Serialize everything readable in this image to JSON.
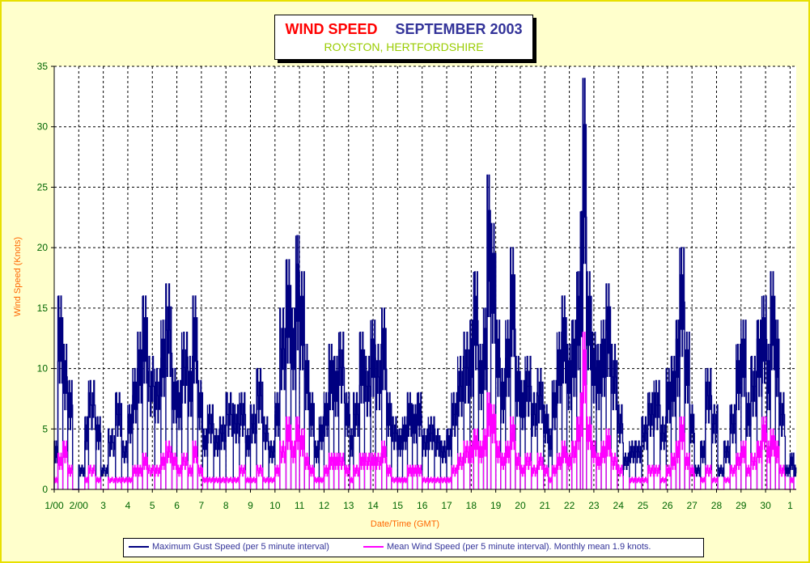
{
  "chart_data": {
    "type": "line",
    "title": {
      "main": "WIND SPEED",
      "month": "SEPTEMBER 2003",
      "subtitle": "ROYSTON, HERTFORDSHIRE"
    },
    "xlabel": "Date/Time (GMT)",
    "ylabel": "Wind Speed (Knots)",
    "ylim": [
      0,
      35
    ],
    "yticks": [
      0,
      5,
      10,
      15,
      20,
      25,
      30,
      35
    ],
    "xlim": [
      0,
      30.25
    ],
    "xtick_labels": [
      "1/00",
      "2/00",
      "3",
      "4",
      "5",
      "6",
      "7",
      "8",
      "9",
      "10",
      "11",
      "12",
      "13",
      "14",
      "15",
      "16",
      "17",
      "18",
      "19",
      "20",
      "21",
      "22",
      "23",
      "24",
      "25",
      "26",
      "27",
      "28",
      "29",
      "30",
      "1"
    ],
    "grid": true,
    "legend_position": "bottom",
    "series": [
      {
        "name": "Maximum Gust Speed (per 5 minute interval)",
        "color": "#000080",
        "x_unit": "days since 1 Sep 00:00 GMT",
        "points": [
          [
            0.0,
            4
          ],
          [
            0.15,
            16
          ],
          [
            0.35,
            12
          ],
          [
            0.55,
            9
          ],
          [
            0.75,
            0
          ],
          [
            1.0,
            2
          ],
          [
            1.25,
            6
          ],
          [
            1.4,
            9
          ],
          [
            1.7,
            6
          ],
          [
            1.9,
            2
          ],
          [
            2.2,
            5
          ],
          [
            2.5,
            8
          ],
          [
            2.75,
            4
          ],
          [
            3.0,
            7
          ],
          [
            3.2,
            10
          ],
          [
            3.4,
            13
          ],
          [
            3.6,
            16
          ],
          [
            3.8,
            11
          ],
          [
            4.1,
            10
          ],
          [
            4.35,
            14
          ],
          [
            4.55,
            17
          ],
          [
            4.8,
            10
          ],
          [
            5.0,
            9
          ],
          [
            5.2,
            13
          ],
          [
            5.45,
            11
          ],
          [
            5.65,
            16
          ],
          [
            5.85,
            9
          ],
          [
            6.05,
            5
          ],
          [
            6.25,
            7
          ],
          [
            6.5,
            5
          ],
          [
            6.75,
            6
          ],
          [
            7.0,
            8
          ],
          [
            7.3,
            7
          ],
          [
            7.55,
            8
          ],
          [
            7.8,
            5
          ],
          [
            8.0,
            7
          ],
          [
            8.25,
            10
          ],
          [
            8.5,
            6
          ],
          [
            8.75,
            4
          ],
          [
            9.0,
            8
          ],
          [
            9.2,
            15
          ],
          [
            9.45,
            19
          ],
          [
            9.65,
            15
          ],
          [
            9.85,
            21
          ],
          [
            10.0,
            18
          ],
          [
            10.2,
            12
          ],
          [
            10.4,
            8
          ],
          [
            10.6,
            4
          ],
          [
            10.8,
            6
          ],
          [
            11.0,
            8
          ],
          [
            11.2,
            12
          ],
          [
            11.4,
            11
          ],
          [
            11.6,
            13
          ],
          [
            11.85,
            8
          ],
          [
            12.05,
            5
          ],
          [
            12.2,
            8
          ],
          [
            12.45,
            13
          ],
          [
            12.65,
            11
          ],
          [
            12.9,
            14
          ],
          [
            13.1,
            12
          ],
          [
            13.35,
            15
          ],
          [
            13.55,
            8
          ],
          [
            13.75,
            6
          ],
          [
            14.0,
            5
          ],
          [
            14.2,
            6
          ],
          [
            14.4,
            8
          ],
          [
            14.6,
            7
          ],
          [
            14.8,
            8
          ],
          [
            15.0,
            5
          ],
          [
            15.25,
            6
          ],
          [
            15.5,
            5
          ],
          [
            15.75,
            4
          ],
          [
            16.0,
            5
          ],
          [
            16.2,
            8
          ],
          [
            16.45,
            11
          ],
          [
            16.7,
            13
          ],
          [
            16.95,
            14
          ],
          [
            17.1,
            18
          ],
          [
            17.3,
            12
          ],
          [
            17.5,
            15
          ],
          [
            17.65,
            26
          ],
          [
            17.8,
            22
          ],
          [
            18.0,
            14
          ],
          [
            18.2,
            10
          ],
          [
            18.4,
            14
          ],
          [
            18.6,
            20
          ],
          [
            18.8,
            11
          ],
          [
            19.0,
            9
          ],
          [
            19.2,
            11
          ],
          [
            19.45,
            8
          ],
          [
            19.7,
            10
          ],
          [
            19.95,
            7
          ],
          [
            20.15,
            5
          ],
          [
            20.3,
            9
          ],
          [
            20.5,
            13
          ],
          [
            20.7,
            16
          ],
          [
            20.9,
            12
          ],
          [
            21.1,
            14
          ],
          [
            21.3,
            18
          ],
          [
            21.45,
            23
          ],
          [
            21.55,
            34
          ],
          [
            21.7,
            18
          ],
          [
            21.9,
            13
          ],
          [
            22.1,
            12
          ],
          [
            22.3,
            14
          ],
          [
            22.5,
            17
          ],
          [
            22.7,
            12
          ],
          [
            22.95,
            7
          ],
          [
            23.2,
            3
          ],
          [
            23.45,
            4
          ],
          [
            23.7,
            4
          ],
          [
            23.95,
            6
          ],
          [
            24.2,
            8
          ],
          [
            24.45,
            9
          ],
          [
            24.7,
            6
          ],
          [
            24.95,
            10
          ],
          [
            25.15,
            11
          ],
          [
            25.35,
            14
          ],
          [
            25.5,
            20
          ],
          [
            25.7,
            13
          ],
          [
            25.9,
            7
          ],
          [
            26.1,
            2
          ],
          [
            26.35,
            4
          ],
          [
            26.55,
            10
          ],
          [
            26.8,
            7
          ],
          [
            27.05,
            2
          ],
          [
            27.3,
            4
          ],
          [
            27.55,
            7
          ],
          [
            27.8,
            12
          ],
          [
            28.0,
            14
          ],
          [
            28.2,
            8
          ],
          [
            28.4,
            11
          ],
          [
            28.65,
            14
          ],
          [
            28.85,
            16
          ],
          [
            29.05,
            12
          ],
          [
            29.2,
            18
          ],
          [
            29.4,
            14
          ],
          [
            29.55,
            8
          ],
          [
            29.8,
            2
          ],
          [
            30.0,
            3
          ],
          [
            30.15,
            2
          ]
        ]
      },
      {
        "name": "Mean Wind Speed (per 5 minute interval). Monthly mean 1.9 knots.",
        "color": "#ff00ff",
        "x_unit": "days since 1 Sep 00:00 GMT",
        "points": [
          [
            0.0,
            1
          ],
          [
            0.15,
            3
          ],
          [
            0.35,
            4
          ],
          [
            0.55,
            2
          ],
          [
            0.75,
            0
          ],
          [
            1.0,
            0
          ],
          [
            1.25,
            1
          ],
          [
            1.4,
            2
          ],
          [
            1.7,
            1
          ],
          [
            1.9,
            0
          ],
          [
            2.2,
            1
          ],
          [
            2.5,
            1
          ],
          [
            2.75,
            1
          ],
          [
            3.0,
            1
          ],
          [
            3.2,
            2
          ],
          [
            3.4,
            2
          ],
          [
            3.6,
            3
          ],
          [
            3.8,
            2
          ],
          [
            4.1,
            2
          ],
          [
            4.35,
            3
          ],
          [
            4.55,
            4
          ],
          [
            4.8,
            3
          ],
          [
            5.0,
            2
          ],
          [
            5.2,
            3
          ],
          [
            5.45,
            2
          ],
          [
            5.65,
            4
          ],
          [
            5.85,
            2
          ],
          [
            6.05,
            1
          ],
          [
            6.25,
            1
          ],
          [
            6.5,
            1
          ],
          [
            6.75,
            1
          ],
          [
            7.0,
            1
          ],
          [
            7.3,
            1
          ],
          [
            7.55,
            2
          ],
          [
            7.8,
            1
          ],
          [
            8.0,
            1
          ],
          [
            8.25,
            2
          ],
          [
            8.5,
            1
          ],
          [
            8.75,
            1
          ],
          [
            9.0,
            2
          ],
          [
            9.2,
            4
          ],
          [
            9.45,
            6
          ],
          [
            9.65,
            4
          ],
          [
            9.85,
            6
          ],
          [
            10.0,
            5
          ],
          [
            10.2,
            3
          ],
          [
            10.4,
            2
          ],
          [
            10.6,
            1
          ],
          [
            10.8,
            1
          ],
          [
            11.0,
            2
          ],
          [
            11.2,
            3
          ],
          [
            11.4,
            3
          ],
          [
            11.6,
            3
          ],
          [
            11.85,
            2
          ],
          [
            12.05,
            1
          ],
          [
            12.2,
            2
          ],
          [
            12.45,
            3
          ],
          [
            12.65,
            3
          ],
          [
            12.9,
            3
          ],
          [
            13.1,
            3
          ],
          [
            13.35,
            4
          ],
          [
            13.55,
            2
          ],
          [
            13.75,
            1
          ],
          [
            14.0,
            1
          ],
          [
            14.2,
            1
          ],
          [
            14.4,
            2
          ],
          [
            14.6,
            2
          ],
          [
            14.8,
            2
          ],
          [
            15.0,
            1
          ],
          [
            15.25,
            1
          ],
          [
            15.5,
            1
          ],
          [
            15.75,
            1
          ],
          [
            16.0,
            1
          ],
          [
            16.2,
            2
          ],
          [
            16.45,
            3
          ],
          [
            16.7,
            4
          ],
          [
            16.95,
            4
          ],
          [
            17.1,
            5
          ],
          [
            17.3,
            4
          ],
          [
            17.5,
            5
          ],
          [
            17.65,
            8
          ],
          [
            17.8,
            7
          ],
          [
            18.0,
            4
          ],
          [
            18.2,
            3
          ],
          [
            18.4,
            4
          ],
          [
            18.6,
            6
          ],
          [
            18.8,
            3
          ],
          [
            19.0,
            2
          ],
          [
            19.2,
            3
          ],
          [
            19.45,
            2
          ],
          [
            19.7,
            3
          ],
          [
            19.95,
            2
          ],
          [
            20.15,
            1
          ],
          [
            20.3,
            2
          ],
          [
            20.5,
            3
          ],
          [
            20.7,
            4
          ],
          [
            20.9,
            3
          ],
          [
            21.1,
            4
          ],
          [
            21.3,
            6
          ],
          [
            21.45,
            8
          ],
          [
            21.55,
            13
          ],
          [
            21.7,
            6
          ],
          [
            21.9,
            4
          ],
          [
            22.1,
            3
          ],
          [
            22.3,
            4
          ],
          [
            22.5,
            5
          ],
          [
            22.7,
            3
          ],
          [
            22.95,
            2
          ],
          [
            23.2,
            0
          ],
          [
            23.45,
            1
          ],
          [
            23.7,
            1
          ],
          [
            23.95,
            1
          ],
          [
            24.2,
            2
          ],
          [
            24.45,
            2
          ],
          [
            24.7,
            1
          ],
          [
            24.95,
            2
          ],
          [
            25.15,
            3
          ],
          [
            25.35,
            4
          ],
          [
            25.5,
            6
          ],
          [
            25.7,
            3
          ],
          [
            25.9,
            2
          ],
          [
            26.1,
            0
          ],
          [
            26.35,
            1
          ],
          [
            26.55,
            2
          ],
          [
            26.8,
            1
          ],
          [
            27.05,
            0
          ],
          [
            27.3,
            1
          ],
          [
            27.55,
            2
          ],
          [
            27.8,
            3
          ],
          [
            28.0,
            4
          ],
          [
            28.2,
            2
          ],
          [
            28.4,
            3
          ],
          [
            28.65,
            4
          ],
          [
            28.85,
            6
          ],
          [
            29.05,
            4
          ],
          [
            29.2,
            5
          ],
          [
            29.4,
            4
          ],
          [
            29.55,
            2
          ],
          [
            29.8,
            0
          ],
          [
            30.0,
            1
          ],
          [
            30.15,
            0
          ]
        ]
      }
    ]
  }
}
